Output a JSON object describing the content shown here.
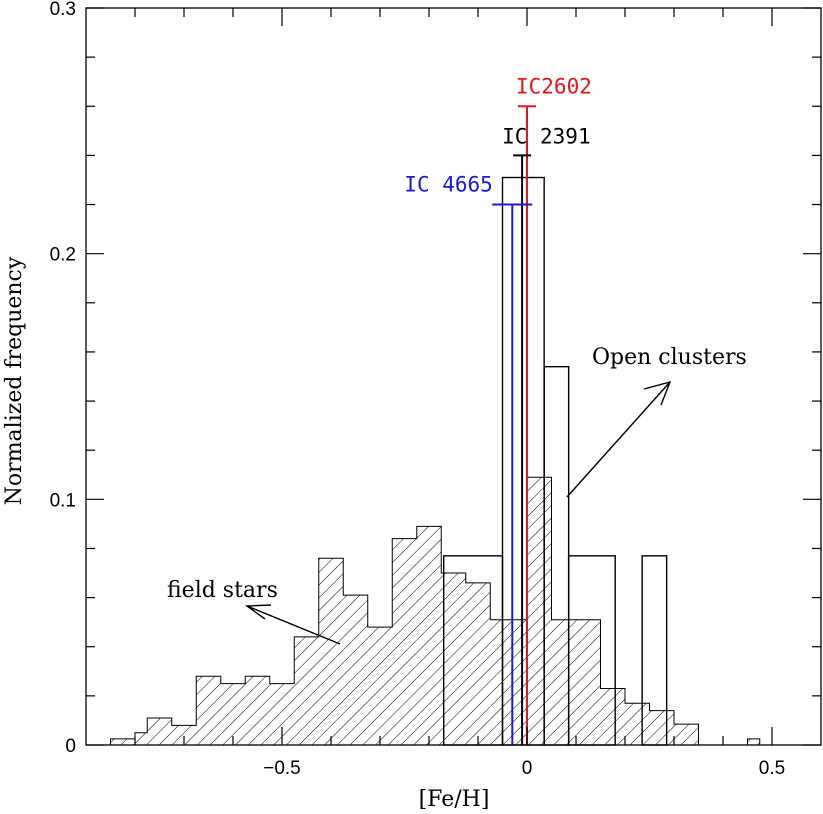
{
  "chart_data": {
    "type": "bar",
    "xlabel": "[Fe/H]",
    "ylabel": "Normalized frequency",
    "xlim": [
      -0.9,
      0.6
    ],
    "ylim": [
      0,
      0.3
    ],
    "x_ticks": [
      {
        "value": -0.5,
        "label": "−0.5"
      },
      {
        "value": 0,
        "label": "0"
      },
      {
        "value": 0.5,
        "label": "0.5"
      }
    ],
    "y_ticks": [
      {
        "value": 0,
        "label": "0"
      },
      {
        "value": 0.1,
        "label": "0.1"
      },
      {
        "value": 0.2,
        "label": "0.2"
      },
      {
        "value": 0.3,
        "label": "0.3"
      }
    ],
    "grid": false,
    "series": [
      {
        "name": "field stars",
        "style": "hatched",
        "color": "#000000",
        "bin_width": 0.025,
        "bin_starts": [
          -0.85,
          -0.825,
          -0.8,
          -0.775,
          -0.75,
          -0.725,
          -0.7,
          -0.675,
          -0.65,
          -0.625,
          -0.6,
          -0.575,
          -0.55,
          -0.525,
          -0.5,
          -0.475,
          -0.45,
          -0.425,
          -0.4,
          -0.375,
          -0.35,
          -0.325,
          -0.3,
          -0.275,
          -0.25,
          -0.225,
          -0.2,
          -0.175,
          -0.15,
          -0.125,
          -0.1,
          -0.075,
          -0.05,
          -0.025,
          0,
          0.025,
          0.05,
          0.075,
          0.1,
          0.125,
          0.15,
          0.175,
          0.2,
          0.225,
          0.25,
          0.275,
          0.3,
          0.325,
          0.35,
          0.375,
          0.4,
          0.425,
          0.45,
          0.475
        ],
        "values": [
          0.0025,
          0.0025,
          0.005,
          0.011,
          0.011,
          0.008,
          0.008,
          0.028,
          0.028,
          0.025,
          0.025,
          0.028,
          0.028,
          0.025,
          0.025,
          0.044,
          0.044,
          0.076,
          0.076,
          0.061,
          0.061,
          0.048,
          0.048,
          0.084,
          0.084,
          0.089,
          0.089,
          0.07,
          0.07,
          0.066,
          0.066,
          0.051,
          0.051,
          0.051,
          0.109,
          0.109,
          0.051,
          0.051,
          0.051,
          0.051,
          0.023,
          0.023,
          0.017,
          0.017,
          0.014,
          0.014,
          0.0085,
          0.0085,
          0,
          0,
          0,
          0,
          0.0025,
          0
        ]
      },
      {
        "name": "Open clusters",
        "style": "outline",
        "color": "#000000",
        "bin_edges": [
          -0.17,
          -0.05,
          0.035,
          0.085,
          0.18,
          0.235,
          0.285
        ],
        "values": [
          0.077,
          0.231,
          0.154,
          0.077,
          0,
          0.077
        ]
      }
    ],
    "markers": [
      {
        "label": "IC2602",
        "color": "#e8141c",
        "x": 0.0,
        "y": 0.26
      },
      {
        "label": "IC 2391",
        "color": "#000000",
        "x": -0.01,
        "y": 0.24
      },
      {
        "label": "IC 4665",
        "color": "#1a1adb",
        "x": -0.03,
        "y": 0.22
      }
    ],
    "annotations": [
      {
        "text": "Open clusters",
        "points_to": "Open clusters"
      },
      {
        "text": "field stars",
        "points_to": "field stars"
      }
    ]
  }
}
